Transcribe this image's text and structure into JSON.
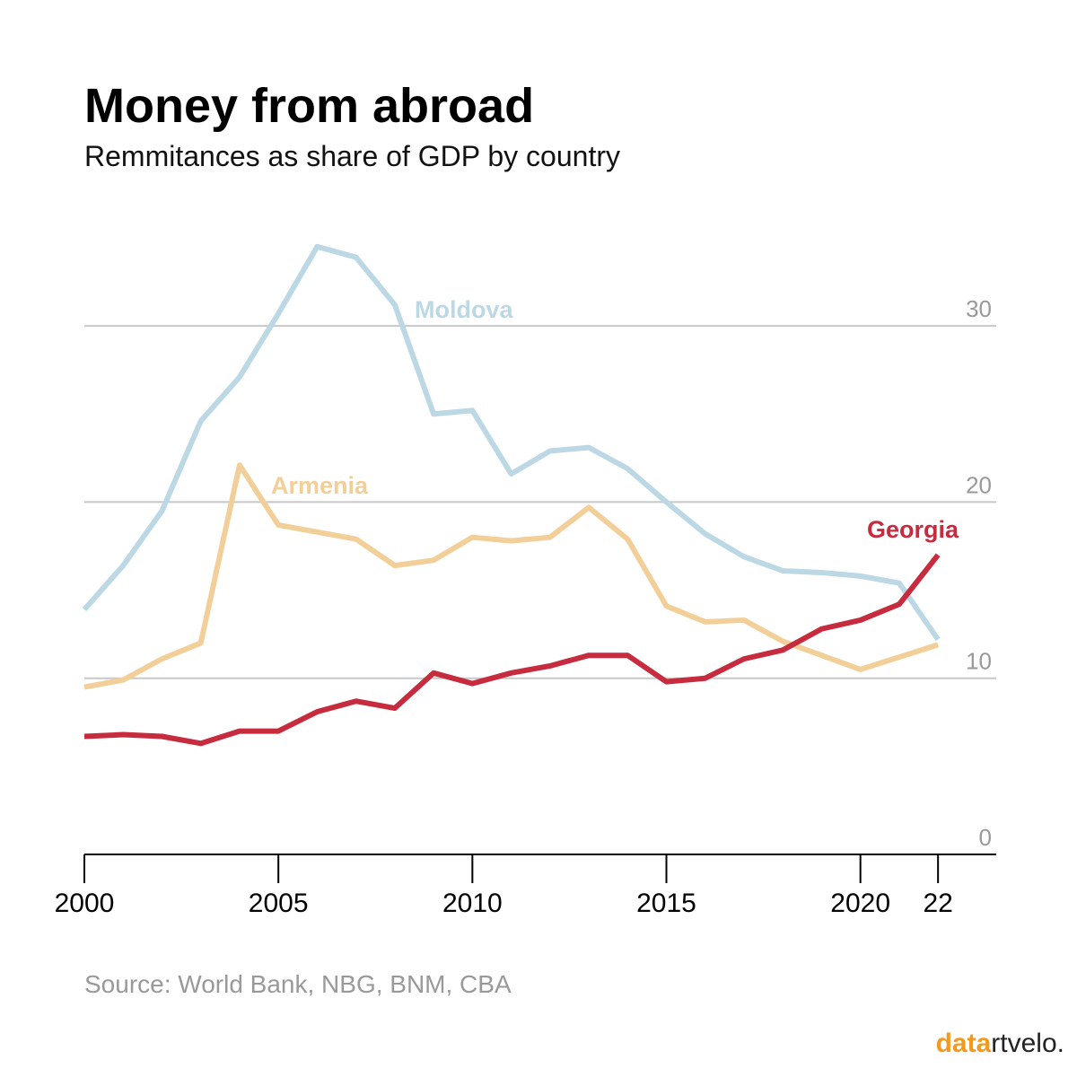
{
  "chart_data": {
    "type": "line",
    "title": "Money from abroad",
    "subtitle": "Remmitances as share of GDP by country",
    "source": "Source: World Bank, NBG, BNM, CBA",
    "brand": [
      "data",
      "rtvelo."
    ],
    "x": [
      2000,
      2001,
      2002,
      2003,
      2004,
      2005,
      2006,
      2007,
      2008,
      2009,
      2010,
      2011,
      2012,
      2013,
      2014,
      2015,
      2016,
      2017,
      2018,
      2019,
      2020,
      2021,
      2022
    ],
    "series": [
      {
        "name": "Moldova",
        "color": "#bcd8e4",
        "values": [
          13.9,
          16.4,
          19.5,
          24.6,
          27.1,
          30.7,
          34.5,
          33.9,
          31.2,
          25.0,
          25.2,
          21.6,
          22.9,
          23.1,
          21.9,
          20.0,
          18.2,
          16.9,
          16.1,
          16.0,
          15.8,
          15.4,
          12.2
        ]
      },
      {
        "name": "Armenia",
        "color": "#f2cf98",
        "values": [
          9.5,
          9.9,
          11.1,
          12.0,
          22.1,
          18.7,
          18.3,
          17.9,
          16.4,
          16.7,
          18.0,
          17.8,
          18.0,
          19.7,
          17.9,
          14.1,
          13.2,
          13.3,
          12.1,
          11.3,
          10.5,
          11.2,
          11.9
        ]
      },
      {
        "name": "Georgia",
        "color": "#c62c3e",
        "values": [
          6.7,
          6.8,
          6.7,
          6.3,
          7.0,
          7.0,
          8.1,
          8.7,
          8.3,
          10.3,
          9.7,
          10.3,
          10.7,
          11.3,
          11.3,
          9.8,
          10.0,
          11.1,
          11.6,
          12.8,
          13.3,
          14.2,
          17.0
        ]
      }
    ],
    "xlim": [
      2000,
      2023.5
    ],
    "xticks": [
      2000,
      2005,
      2010,
      2015,
      2020,
      {
        "value": 2022,
        "label": "22"
      }
    ],
    "ylim": [
      0,
      35
    ],
    "yticks": [
      0,
      10,
      20,
      30
    ],
    "grid": true
  }
}
